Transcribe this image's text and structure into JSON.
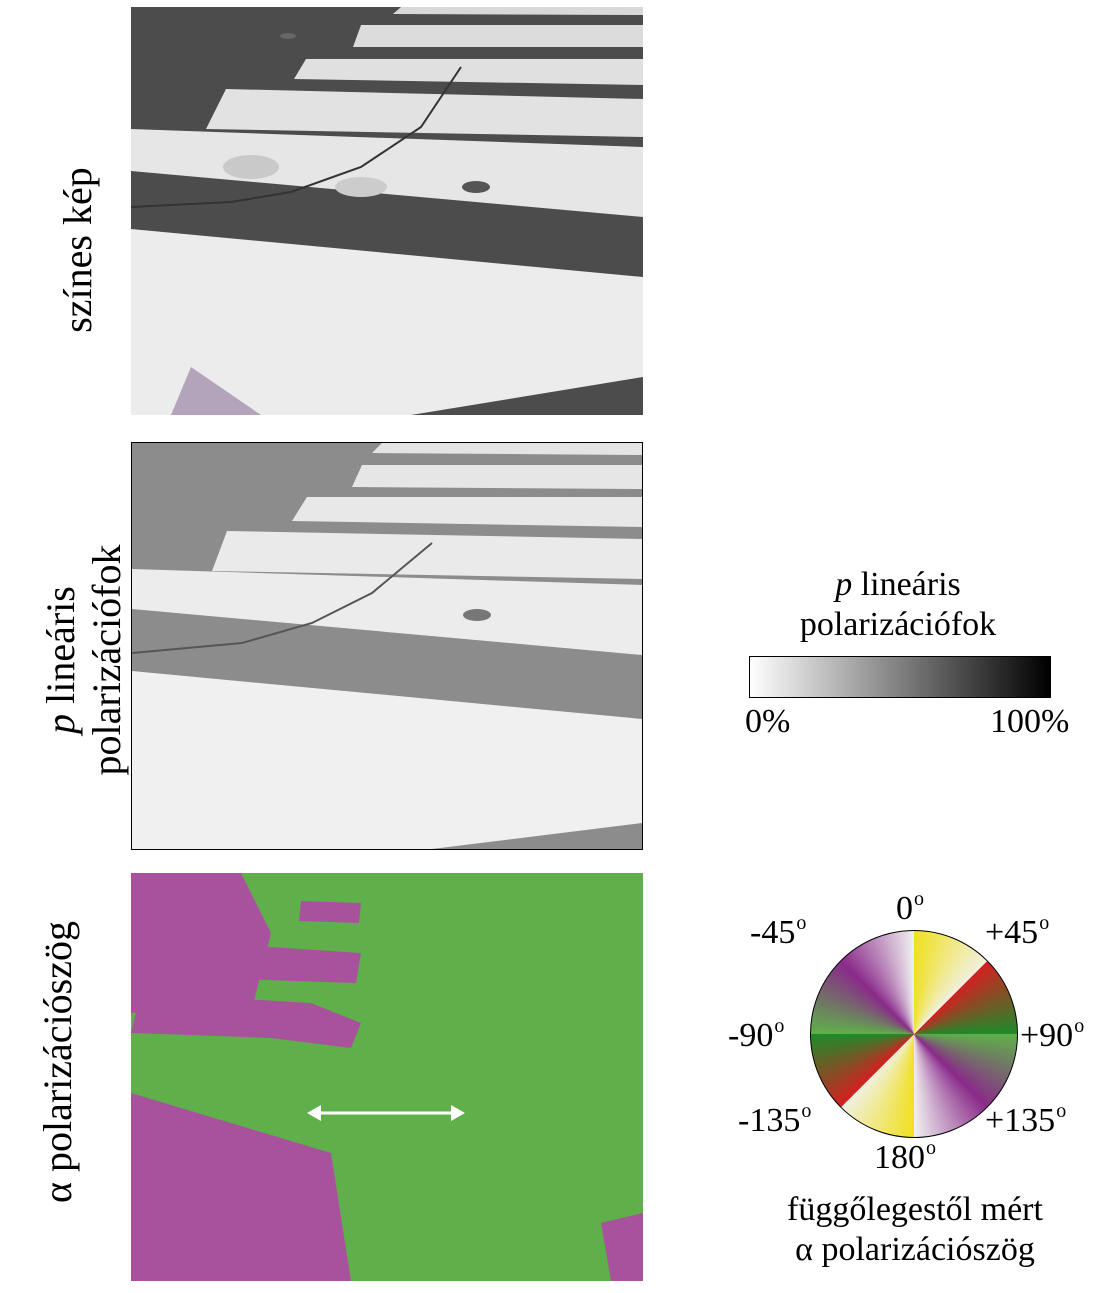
{
  "rows": [
    {
      "label_lines": [
        "színes kép"
      ],
      "italic_prefix": ""
    },
    {
      "label_lines": [
        "lineáris",
        "polarizációfok"
      ],
      "italic_prefix": "p"
    },
    {
      "label_lines": [
        "α polarizációszög"
      ],
      "italic_prefix": ""
    }
  ],
  "p_legend": {
    "symbol": "p",
    "title_line1": "lineáris",
    "title_line2": "polarizációfok",
    "min_label": "0%",
    "max_label": "100%"
  },
  "angle_legend": {
    "angles": [
      "0",
      "+45",
      "+90",
      "+135",
      "180",
      "-135",
      "-90",
      "-45"
    ],
    "degree_mark": "o",
    "caption_line1": "függőlegestől mért",
    "caption_line2": "α polarizációszög"
  },
  "colors": {
    "asphalt": "#4a4a4a",
    "stripe": "#e8e8e8",
    "green": "#5fb04a",
    "magenta": "#a8529e",
    "yellow": "#f0e020",
    "red": "#d42020",
    "purple": "#8a2a8a",
    "dark_green": "#1f8a2a"
  }
}
